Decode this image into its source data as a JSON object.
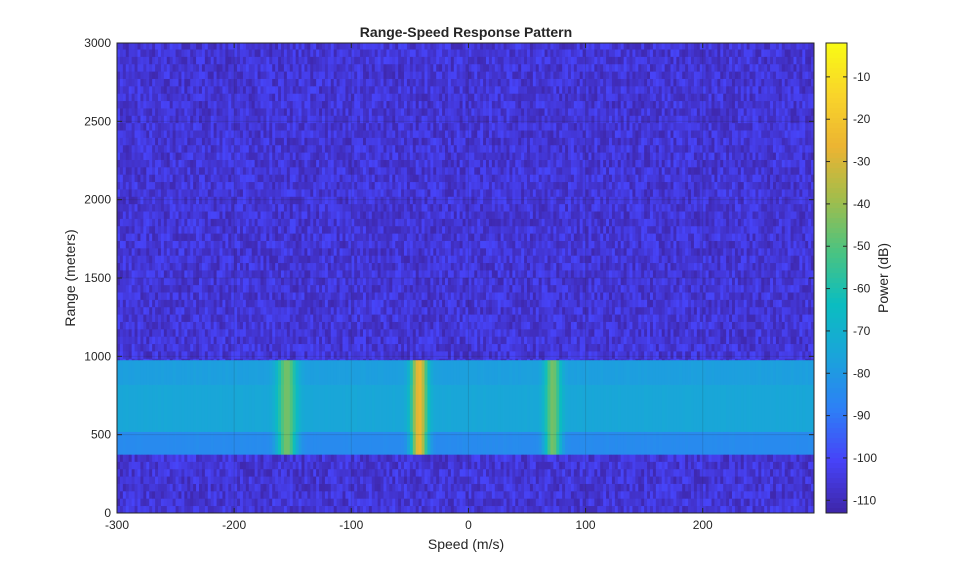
{
  "chart_data": {
    "type": "heatmap",
    "title": "Range-Speed Response Pattern",
    "xlabel": "Speed (m/s)",
    "ylabel": "Range (meters)",
    "xlim": [
      -300,
      295
    ],
    "ylim": [
      0,
      3000
    ],
    "x_ticks": [
      -300,
      -200,
      -100,
      0,
      100,
      200
    ],
    "y_ticks": [
      0,
      500,
      1000,
      1500,
      2000,
      2500,
      3000
    ],
    "grid": true,
    "colorbar": {
      "label": "Power (dB)",
      "range": [
        -113,
        -2
      ],
      "ticks": [
        -10,
        -20,
        -30,
        -40,
        -50,
        -60,
        -70,
        -80,
        -90,
        -100,
        -110
      ],
      "colormap": "parula",
      "colors": [
        "#3e26a8",
        "#4743f8",
        "#2d80f6",
        "#1aa4da",
        "#0bbdc0",
        "#4ac381",
        "#a1bd4c",
        "#ebb432",
        "#f9d42a",
        "#f9fb15"
      ]
    },
    "noise_floor_db": [
      -112,
      -100
    ],
    "band": {
      "range_extent": [
        375,
        975
      ],
      "rows": [
        {
          "range": [
            375,
            520
          ],
          "base_db": -85
        },
        {
          "range": [
            520,
            820
          ],
          "base_db": -75
        },
        {
          "range": [
            820,
            975
          ],
          "base_db": -78
        }
      ]
    },
    "targets": [
      {
        "speed": -155,
        "peak_db": -45,
        "width": 12
      },
      {
        "speed": -42,
        "peak_db": -25,
        "width": 10
      },
      {
        "speed": 72,
        "peak_db": -45,
        "width": 10
      }
    ]
  }
}
